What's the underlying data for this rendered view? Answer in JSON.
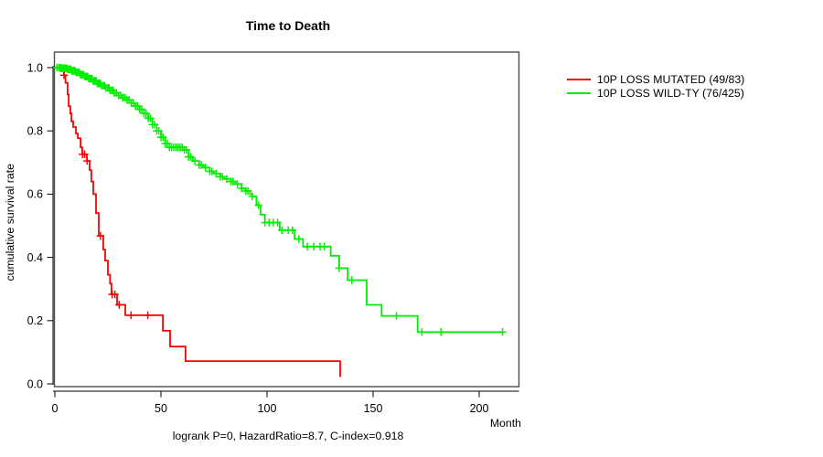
{
  "title": "Time to Death",
  "footer": "logrank P=0, HazardRatio=8.7, C-index=0.918",
  "x_axis": {
    "label": "Month",
    "ticks": [
      0,
      50,
      100,
      150,
      200
    ],
    "range": [
      0,
      220
    ]
  },
  "y_axis": {
    "label": "cumulative survival rate",
    "ticks": [
      "0.0",
      "0.2",
      "0.4",
      "0.6",
      "0.8",
      "1.0"
    ],
    "range": [
      0,
      1
    ]
  },
  "legend": [
    {
      "label": "10P LOSS MUTATED (49/83)",
      "color": "#ff0000"
    },
    {
      "label": "10P LOSS WILD-TY (76/425)",
      "color": "#00ee00"
    }
  ],
  "chart_data": {
    "type": "line",
    "subtype": "kaplan-meier-step-curves",
    "title": "Time to Death",
    "xlabel": "Month",
    "ylabel": "cumulative survival rate",
    "xlim": [
      0,
      220
    ],
    "ylim": [
      0,
      1
    ],
    "grid": false,
    "legend_position": "right-outside",
    "annotation": "logrank P=0, HazardRatio=8.7, C-index=0.918",
    "series": [
      {
        "name": "10P LOSS MUTATED (49/83)",
        "color": "#ff0000",
        "points": [
          [
            0,
            1.0
          ],
          [
            3,
            0.99
          ],
          [
            4.3,
            0.976
          ],
          [
            5,
            0.952
          ],
          [
            6,
            0.915
          ],
          [
            6.5,
            0.878
          ],
          [
            7.3,
            0.855
          ],
          [
            7.8,
            0.83
          ],
          [
            8.6,
            0.812
          ],
          [
            9.9,
            0.792
          ],
          [
            10.8,
            0.777
          ],
          [
            12.1,
            0.748
          ],
          [
            12.9,
            0.726
          ],
          [
            15.1,
            0.705
          ],
          [
            16.4,
            0.676
          ],
          [
            17.2,
            0.64
          ],
          [
            18.1,
            0.6
          ],
          [
            19.4,
            0.54
          ],
          [
            20.7,
            0.468
          ],
          [
            22.8,
            0.425
          ],
          [
            23.7,
            0.39
          ],
          [
            25,
            0.345
          ],
          [
            26,
            0.317
          ],
          [
            26.7,
            0.283
          ],
          [
            29.3,
            0.25
          ],
          [
            33.2,
            0.217
          ],
          [
            50.9,
            0.168
          ],
          [
            54.3,
            0.118
          ],
          [
            61.6,
            0.072
          ],
          [
            134.5,
            0.022
          ]
        ],
        "censor_times": [
          4.3,
          13,
          14,
          15.2,
          21.5,
          27,
          28.3,
          30.3,
          35.9,
          43.8
        ]
      },
      {
        "name": "10P LOSS WILD-TY (76/425)",
        "color": "#00ee00",
        "points": [
          [
            0,
            1.0
          ],
          [
            3,
            0.998
          ],
          [
            6,
            0.995
          ],
          [
            8,
            0.99
          ],
          [
            10,
            0.985
          ],
          [
            12,
            0.978
          ],
          [
            14,
            0.972
          ],
          [
            16,
            0.965
          ],
          [
            18,
            0.958
          ],
          [
            20,
            0.95
          ],
          [
            22,
            0.943
          ],
          [
            24,
            0.936
          ],
          [
            26,
            0.928
          ],
          [
            28,
            0.92
          ],
          [
            30,
            0.912
          ],
          [
            32,
            0.905
          ],
          [
            34,
            0.898
          ],
          [
            36,
            0.888
          ],
          [
            38,
            0.878
          ],
          [
            40,
            0.868
          ],
          [
            42,
            0.855
          ],
          [
            44,
            0.84
          ],
          [
            46,
            0.82
          ],
          [
            48,
            0.8
          ],
          [
            50,
            0.78
          ],
          [
            52,
            0.76
          ],
          [
            54,
            0.748
          ],
          [
            61,
            0.74
          ],
          [
            63,
            0.718
          ],
          [
            65,
            0.705
          ],
          [
            68,
            0.692
          ],
          [
            70,
            0.684
          ],
          [
            73,
            0.672
          ],
          [
            75,
            0.665
          ],
          [
            78,
            0.655
          ],
          [
            80,
            0.648
          ],
          [
            83,
            0.64
          ],
          [
            85,
            0.632
          ],
          [
            88,
            0.618
          ],
          [
            90,
            0.61
          ],
          [
            92,
            0.6
          ],
          [
            93,
            0.593
          ],
          [
            95,
            0.565
          ],
          [
            97,
            0.535
          ],
          [
            99,
            0.51
          ],
          [
            106,
            0.486
          ],
          [
            113,
            0.458
          ],
          [
            117,
            0.434
          ],
          [
            130,
            0.405
          ],
          [
            134,
            0.366
          ],
          [
            138,
            0.328
          ],
          [
            147,
            0.25
          ],
          [
            154,
            0.215
          ],
          [
            171,
            0.164
          ],
          [
            211,
            0.164
          ]
        ],
        "censor_times": [
          1,
          2,
          2.5,
          3,
          3.5,
          4,
          4.5,
          5,
          5.5,
          6,
          6.5,
          7,
          7.5,
          8,
          8.5,
          9,
          9.5,
          10,
          10.5,
          11,
          11.5,
          12,
          12.5,
          13,
          13.5,
          14,
          14.5,
          15,
          15.5,
          16,
          16.5,
          17,
          17.5,
          18,
          18.5,
          19,
          19.5,
          20,
          20.5,
          21,
          21.5,
          22,
          23,
          23.5,
          24,
          25,
          25.5,
          26,
          27,
          27.5,
          28,
          29,
          30,
          31,
          32,
          33,
          34,
          35,
          36,
          37,
          38,
          39,
          40,
          41,
          42,
          43,
          44,
          45,
          46,
          47,
          48,
          49,
          50,
          51,
          52,
          53,
          54,
          55,
          56,
          57,
          58,
          59,
          60,
          61,
          62,
          63,
          64,
          66,
          68,
          69,
          71,
          73,
          74,
          76,
          78,
          79,
          81,
          83,
          84,
          86,
          88,
          90,
          91,
          93,
          96,
          99,
          101,
          103,
          105,
          107,
          110,
          112,
          115,
          119,
          122,
          125,
          127,
          134,
          140,
          161,
          173,
          182,
          211
        ]
      }
    ]
  }
}
